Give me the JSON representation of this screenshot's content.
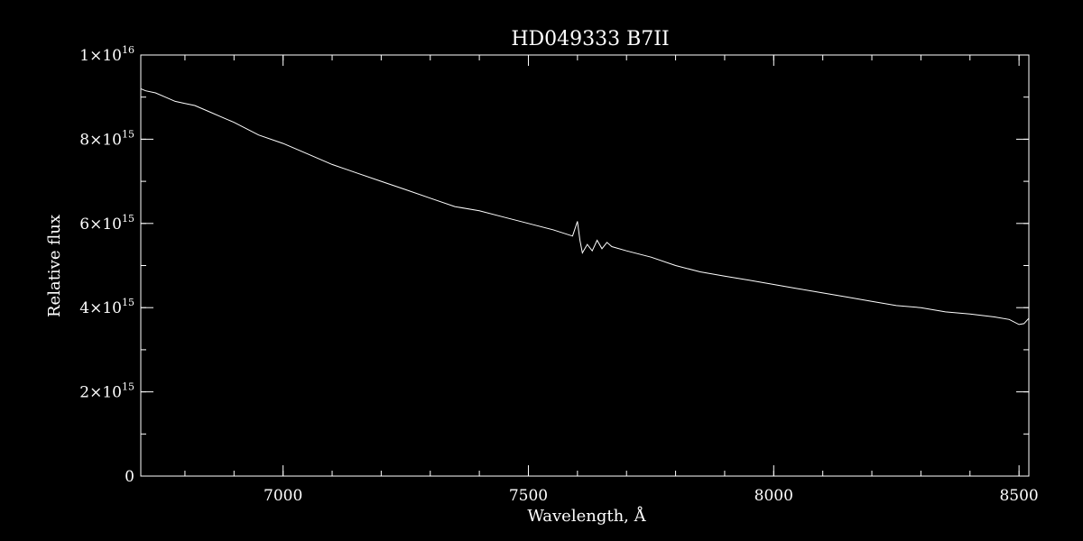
{
  "colors": {
    "background": "#000000",
    "foreground": "#ffffff"
  },
  "chart_data": {
    "type": "line",
    "title": "HD049333   B7II",
    "xlabel": "Wavelength, Å",
    "ylabel": "Relative flux",
    "xlim": [
      6710,
      8520
    ],
    "ylim": [
      0,
      1e+16
    ],
    "grid": false,
    "legend": "none",
    "x_ticks": [
      {
        "value": 7000,
        "label": "7000"
      },
      {
        "value": 7500,
        "label": "7500"
      },
      {
        "value": 8000,
        "label": "8000"
      },
      {
        "value": 8500,
        "label": "8500"
      }
    ],
    "x_minor_step": 100,
    "y_ticks": [
      {
        "value": 0,
        "base": "0",
        "exp": ""
      },
      {
        "value": 2000000000000000.0,
        "base": "2×10",
        "exp": "15"
      },
      {
        "value": 4000000000000000.0,
        "base": "4×10",
        "exp": "15"
      },
      {
        "value": 6000000000000000.0,
        "base": "6×10",
        "exp": "15"
      },
      {
        "value": 8000000000000000.0,
        "base": "8×10",
        "exp": "15"
      },
      {
        "value": 1e+16,
        "base": "1×10",
        "exp": "16"
      }
    ],
    "y_minor_step": 1000000000000000.0,
    "series": [
      {
        "x": [
          6710,
          6720,
          6740,
          6760,
          6780,
          6800,
          6820,
          6850,
          6880,
          6900,
          6950,
          7000,
          7050,
          7100,
          7150,
          7200,
          7250,
          7300,
          7350,
          7400,
          7450,
          7500,
          7550,
          7590,
          7600,
          7605,
          7610,
          7620,
          7630,
          7640,
          7650,
          7660,
          7670,
          7700,
          7750,
          7800,
          7850,
          7900,
          7950,
          8000,
          8050,
          8100,
          8150,
          8200,
          8250,
          8300,
          8350,
          8400,
          8450,
          8480,
          8500,
          8510,
          8520
        ],
        "y": [
          9200000000000000.0,
          9150000000000000.0,
          9100000000000000.0,
          9000000000000000.0,
          8900000000000000.0,
          8850000000000000.0,
          8800000000000000.0,
          8650000000000000.0,
          8500000000000000.0,
          8400000000000000.0,
          8100000000000000.0,
          7900000000000000.0,
          7650000000000000.0,
          7400000000000000.0,
          7200000000000000.0,
          7000000000000000.0,
          6800000000000000.0,
          6600000000000000.0,
          6400000000000000.0,
          6300000000000000.0,
          6150000000000000.0,
          6000000000000000.0,
          5850000000000000.0,
          5700000000000000.0,
          6050000000000000.0,
          5600000000000000.0,
          5300000000000000.0,
          5500000000000000.0,
          5350000000000000.0,
          5600000000000000.0,
          5400000000000000.0,
          5550000000000000.0,
          5450000000000000.0,
          5350000000000000.0,
          5200000000000000.0,
          5000000000000000.0,
          4850000000000000.0,
          4750000000000000.0,
          4650000000000000.0,
          4550000000000000.0,
          4450000000000000.0,
          4350000000000000.0,
          4250000000000000.0,
          4150000000000000.0,
          4050000000000000.0,
          4000000000000000.0,
          3900000000000000.0,
          3850000000000000.0,
          3780000000000000.0,
          3720000000000000.0,
          3600000000000000.0,
          3620000000000000.0,
          3750000000000000.0
        ]
      }
    ]
  }
}
